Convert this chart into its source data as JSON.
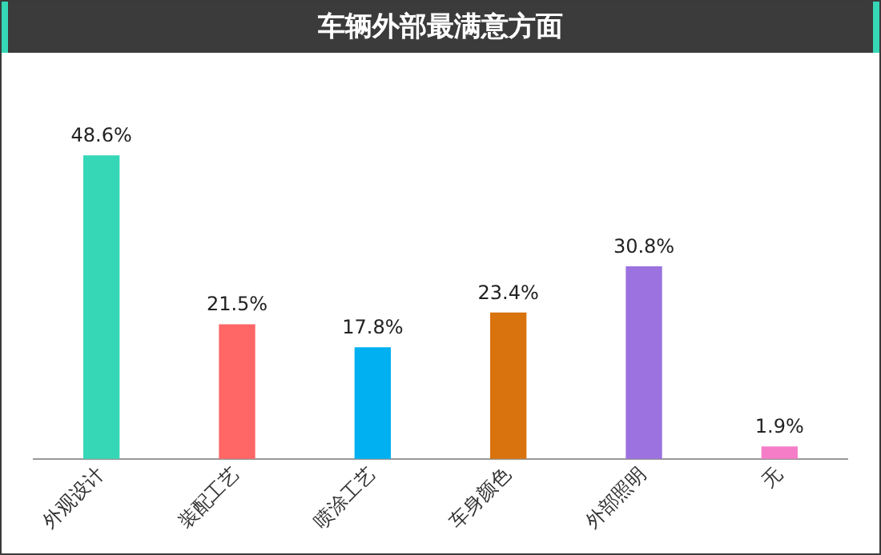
{
  "chart_data": {
    "type": "bar",
    "title": "车辆外部最满意方面",
    "categories": [
      "外观设计",
      "装配工艺",
      "喷涂工艺",
      "车身颜色",
      "外部照明",
      "无"
    ],
    "values": [
      48.6,
      21.5,
      17.8,
      23.4,
      30.8,
      1.9
    ],
    "colors": [
      "#36d7b7",
      "#ff6666",
      "#00b0f0",
      "#d9730d",
      "#9b72e0",
      "#f57dc8"
    ],
    "value_labels": [
      "48.6%",
      "21.5%",
      "17.8%",
      "23.4%",
      "30.8%",
      "1.9%"
    ],
    "grid": false,
    "legend": false
  }
}
